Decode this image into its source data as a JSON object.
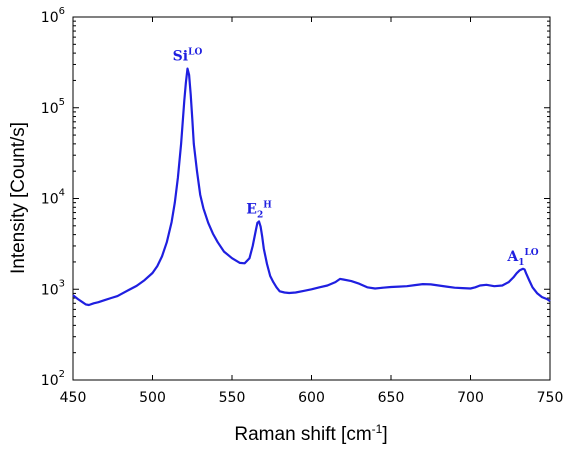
{
  "chart_data": {
    "type": "line",
    "title": "",
    "xlabel": {
      "text": "Raman shift  [cm",
      "sup": "-1",
      "suffix": "]"
    },
    "ylabel": "Intensity  [Count/s]",
    "xlim": [
      450,
      750
    ],
    "ylim": [
      100,
      1000000
    ],
    "yscale": "log",
    "grid": false,
    "legend": "none",
    "line_color": "#1f1fe0",
    "x_ticks": [
      "450",
      "500",
      "550",
      "600",
      "650",
      "700",
      "750"
    ],
    "y_ticks": [
      {
        "base": "10",
        "exp": "2"
      },
      {
        "base": "10",
        "exp": "3"
      },
      {
        "base": "10",
        "exp": "4"
      },
      {
        "base": "10",
        "exp": "5"
      },
      {
        "base": "10",
        "exp": "6"
      }
    ],
    "series": [
      {
        "x": [
          450,
          453,
          456,
          458,
          460,
          463,
          466,
          470,
          474,
          478,
          480,
          485,
          490,
          495,
          500,
          503,
          506,
          509,
          512,
          514,
          516,
          518,
          520,
          521,
          522,
          523,
          524,
          525,
          526,
          528,
          530,
          532,
          535,
          538,
          541,
          545,
          550,
          555,
          558,
          561,
          563,
          565,
          566,
          567,
          568,
          569,
          570,
          572,
          574,
          576,
          578,
          580,
          583,
          586,
          590,
          595,
          600,
          605,
          610,
          615,
          618,
          620,
          625,
          630,
          635,
          640,
          645,
          650,
          655,
          660,
          665,
          670,
          675,
          680,
          685,
          690,
          695,
          700,
          703,
          706,
          710,
          715,
          720,
          724,
          727,
          729,
          731,
          733,
          734,
          735,
          737,
          739,
          742,
          745,
          748,
          750
        ],
        "y": [
          860,
          780,
          720,
          680,
          670,
          700,
          720,
          760,
          800,
          840,
          880,
          980,
          1090,
          1260,
          1510,
          1800,
          2300,
          3300,
          5500,
          9000,
          17000,
          40000,
          120000,
          190000,
          270000,
          230000,
          140000,
          75000,
          40000,
          20000,
          11000,
          7800,
          5400,
          4100,
          3300,
          2600,
          2200,
          1950,
          1930,
          2200,
          3000,
          4500,
          5400,
          5600,
          4900,
          3800,
          2800,
          1900,
          1400,
          1200,
          1050,
          950,
          920,
          910,
          920,
          960,
          1000,
          1050,
          1100,
          1200,
          1300,
          1280,
          1230,
          1150,
          1050,
          1020,
          1040,
          1060,
          1070,
          1080,
          1110,
          1140,
          1130,
          1100,
          1070,
          1040,
          1030,
          1020,
          1050,
          1100,
          1120,
          1080,
          1100,
          1200,
          1350,
          1500,
          1620,
          1680,
          1650,
          1500,
          1250,
          1050,
          900,
          820,
          780,
          740
        ]
      }
    ],
    "annotations": [
      {
        "base": "Si",
        "sub": "",
        "sup": "LO",
        "x": 522,
        "y": 270000
      },
      {
        "base": "E",
        "sub": "2",
        "sup": "H",
        "x": 567,
        "y": 5600
      },
      {
        "base": "A",
        "sub": "1",
        "sup": "LO",
        "x": 733,
        "y": 1680
      }
    ]
  }
}
